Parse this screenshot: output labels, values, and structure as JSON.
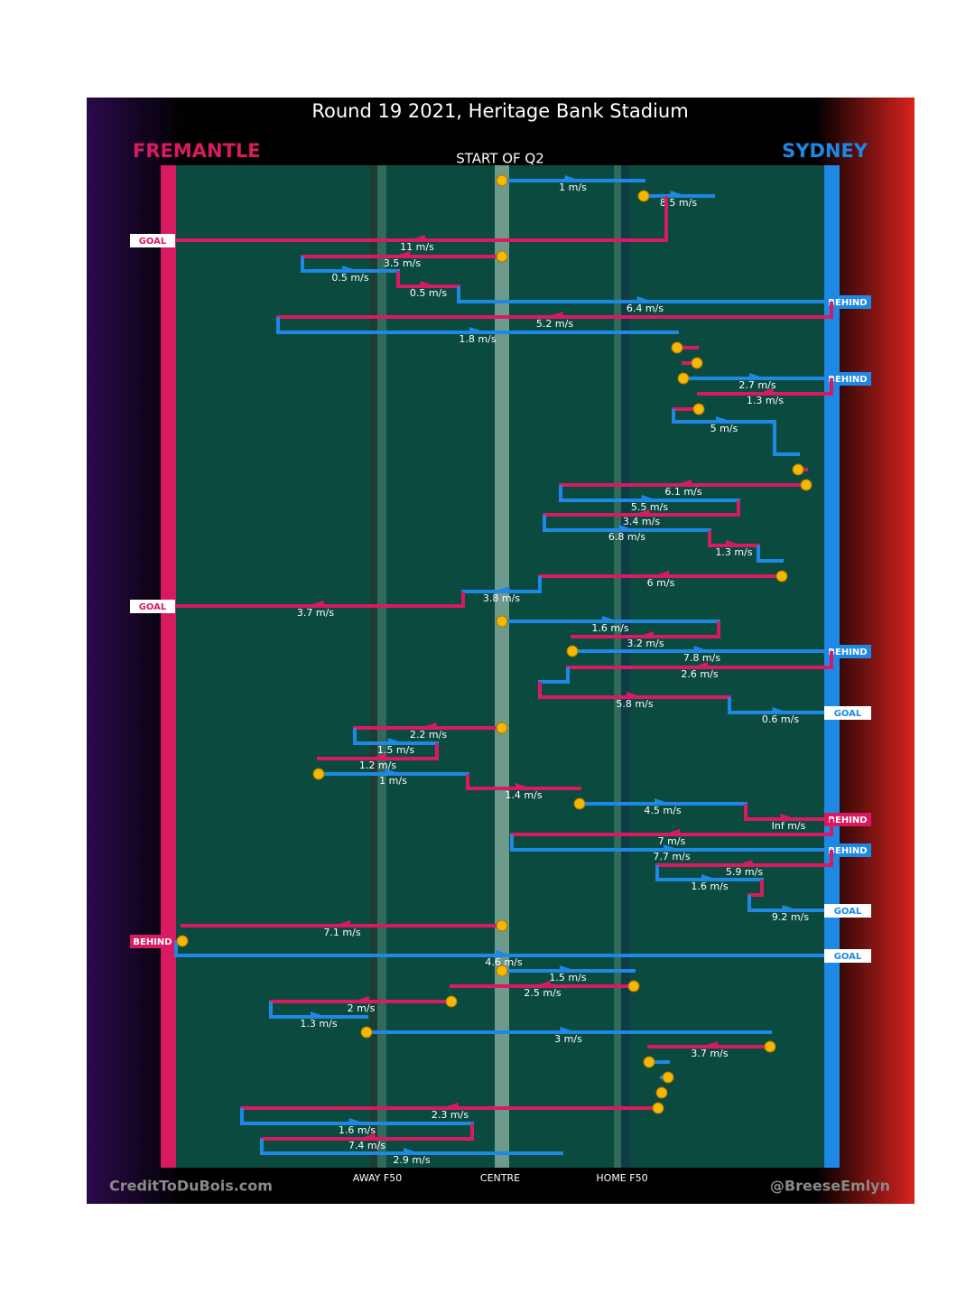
{
  "title": "Round 19 2021, Heritage Bank Stadium",
  "home_team": {
    "name": "FREMANTLE",
    "color": "#d81b60"
  },
  "away_team": {
    "name": "SYDNEY",
    "color": "#1e88e5"
  },
  "subtitle": "START OF Q2",
  "field_labels": [
    "AWAY F50",
    "CENTRE",
    "HOME F50"
  ],
  "credit_left": "CreditToDuBois.com",
  "credit_right": "@BreeseEmlyn",
  "kicks": [
    {
      "speed": "1 m/s"
    },
    {
      "speed": "8.5 m/s"
    },
    {
      "speed": "11 m/s",
      "outcome": "GOAL"
    },
    {
      "speed": "3.5 m/s"
    },
    {
      "speed": "0.5 m/s"
    },
    {
      "speed": "0.5 m/s"
    },
    {
      "speed": "6.4 m/s",
      "outcome": "BEHIND"
    },
    {
      "speed": "5.2 m/s"
    },
    {
      "speed": "1.8 m/s"
    },
    {},
    {},
    {
      "speed": "2.7 m/s",
      "outcome": "BEHIND"
    },
    {
      "speed": "1.3 m/s"
    },
    {},
    {
      "speed": "5 m/s"
    },
    {},
    {},
    {
      "speed": "6.1 m/s"
    },
    {
      "speed": "5.5 m/s"
    },
    {
      "speed": "3.4 m/s"
    },
    {
      "speed": "6.8 m/s"
    },
    {
      "speed": "1.3 m/s"
    },
    {},
    {
      "speed": "6 m/s"
    },
    {
      "speed": "3.8 m/s"
    },
    {
      "speed": "3.7 m/s",
      "outcome": "GOAL"
    },
    {
      "speed": "1.6 m/s"
    },
    {
      "speed": "3.2 m/s"
    },
    {
      "speed": "7.8 m/s",
      "outcome": "BEHIND"
    },
    {
      "speed": "2.6 m/s"
    },
    {},
    {
      "speed": "5.8 m/s"
    },
    {
      "speed": "0.6 m/s",
      "outcome": "GOAL"
    },
    {
      "speed": "2.2 m/s"
    },
    {
      "speed": "1.5 m/s"
    },
    {
      "speed": "1.2 m/s"
    },
    {
      "speed": "1 m/s"
    },
    {
      "speed": "1.4 m/s"
    },
    {
      "speed": "4.5 m/s"
    },
    {
      "speed": "Inf m/s",
      "outcome": "BEHIND"
    },
    {
      "speed": "7 m/s"
    },
    {
      "speed": "7.7 m/s",
      "outcome": "BEHIND"
    },
    {
      "speed": "5.9 m/s"
    },
    {
      "speed": "1.6 m/s"
    },
    {},
    {
      "speed": "9.2 m/s",
      "outcome": "GOAL"
    },
    {
      "speed": "7.1 m/s"
    },
    {
      "outcome": "BEHIND"
    },
    {
      "speed": "4.6 m/s",
      "outcome": "GOAL"
    },
    {
      "speed": "1.5 m/s"
    },
    {
      "speed": "2.5 m/s"
    },
    {
      "speed": "2 m/s"
    },
    {
      "speed": "1.3 m/s"
    },
    {
      "speed": "3 m/s"
    },
    {
      "speed": "3.7 m/s"
    },
    {},
    {},
    {},
    {
      "speed": "2.3 m/s"
    },
    {
      "speed": "1.6 m/s"
    },
    {
      "speed": "7.4 m/s"
    },
    {
      "speed": "2.9 m/s"
    }
  ]
}
